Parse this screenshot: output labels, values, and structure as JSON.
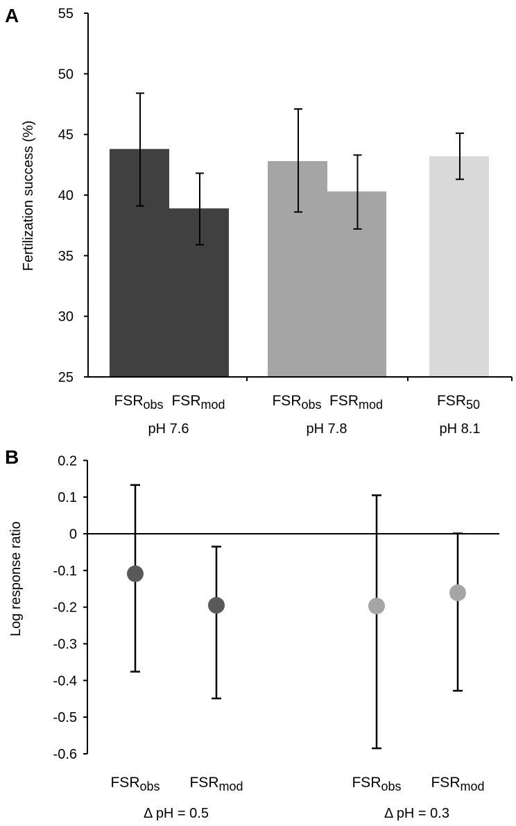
{
  "chart_data": [
    {
      "type": "bar",
      "panel_label": "A",
      "ylabel": "Fertilization success (%)",
      "ylim": [
        25,
        55
      ],
      "yticks": [
        25,
        30,
        35,
        40,
        45,
        50,
        55
      ],
      "bars": [
        {
          "base": "FSR",
          "sub": "obs",
          "group": "pH 7.6",
          "value": 43.8,
          "err_low": 39.1,
          "err_high": 48.4,
          "color": "#404040"
        },
        {
          "base": "FSR",
          "sub": "mod",
          "group": "pH 7.6",
          "value": 38.9,
          "err_low": 35.9,
          "err_high": 41.8,
          "color": "#404040"
        },
        {
          "base": "FSR",
          "sub": "obs",
          "group": "pH 7.8",
          "value": 42.8,
          "err_low": 38.6,
          "err_high": 47.1,
          "color": "#a5a5a5"
        },
        {
          "base": "FSR",
          "sub": "mod",
          "group": "pH 7.8",
          "value": 40.3,
          "err_low": 37.2,
          "err_high": 43.3,
          "color": "#a5a5a5"
        },
        {
          "base": "FSR",
          "sub": "50",
          "group": "pH 8.1",
          "value": 43.2,
          "err_low": 41.3,
          "err_high": 45.1,
          "color": "#d9d9d9"
        }
      ],
      "groups": [
        "pH 7.6",
        "pH 7.8",
        "pH 8.1"
      ]
    },
    {
      "type": "scatter",
      "panel_label": "B",
      "ylabel": "Log response ratio",
      "ylim": [
        -0.6,
        0.2
      ],
      "yticks": [
        "0.2",
        "0.1",
        "0",
        "-0.1",
        "-0.2",
        "-0.3",
        "-0.4",
        "-0.5",
        "-0.6"
      ],
      "points": [
        {
          "base": "FSR",
          "sub": "obs",
          "group": "Δ pH = 0.5",
          "value": -0.109,
          "err_low": -0.376,
          "err_high": 0.133,
          "color": "#595959"
        },
        {
          "base": "FSR",
          "sub": "mod",
          "group": "Δ pH = 0.5",
          "value": -0.195,
          "err_low": -0.449,
          "err_high": -0.035,
          "color": "#595959"
        },
        {
          "base": "FSR",
          "sub": "obs",
          "group": "Δ pH = 0.3",
          "value": -0.197,
          "err_low": -0.585,
          "err_high": 0.105,
          "color": "#a5a5a5"
        },
        {
          "base": "FSR",
          "sub": "mod",
          "group": "Δ pH = 0.3",
          "value": -0.161,
          "err_low": -0.428,
          "err_high": 0.001,
          "color": "#a5a5a5"
        }
      ],
      "groups": [
        "Δ pH = 0.5",
        "Δ pH = 0.3"
      ]
    }
  ]
}
